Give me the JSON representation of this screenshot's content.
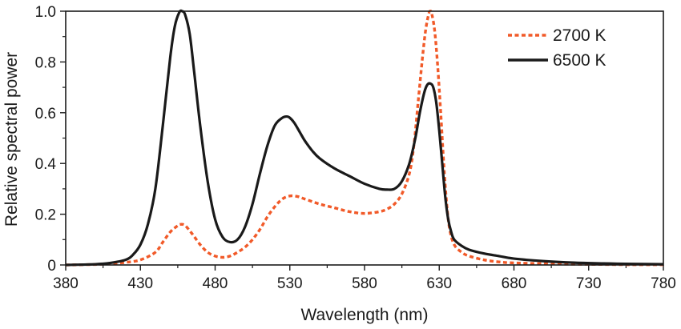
{
  "chart_data": {
    "type": "line",
    "title": "",
    "xlabel": "Wavelength (nm)",
    "ylabel": "Relative spectral power",
    "xlim": [
      380,
      780
    ],
    "ylim": [
      0,
      1.0
    ],
    "x_ticks": [
      380,
      430,
      480,
      530,
      580,
      630,
      680,
      730,
      780
    ],
    "x_tick_labels": [
      "380",
      "430",
      "480",
      "530",
      "580",
      "630",
      "680",
      "730",
      "780"
    ],
    "y_ticks": [
      0,
      0.2,
      0.4,
      0.6,
      0.8,
      1.0
    ],
    "y_tick_labels": [
      "0",
      "0.2",
      "0.4",
      "0.6",
      "0.8",
      "1.0"
    ],
    "grid": false,
    "legend_position": "top-right",
    "series": [
      {
        "name": "2700 K",
        "color": "#f15a29",
        "style": "dotted",
        "x": [
          380,
          400,
          410,
          420,
          430,
          440,
          445,
          450,
          455,
          457,
          460,
          465,
          470,
          475,
          480,
          485,
          490,
          495,
          500,
          505,
          510,
          515,
          520,
          525,
          530,
          535,
          540,
          550,
          560,
          570,
          580,
          590,
          595,
          600,
          605,
          610,
          613,
          616,
          619,
          621,
          623,
          624,
          625,
          627,
          629,
          631,
          633,
          635,
          637,
          640,
          645,
          650,
          660,
          670,
          680,
          700,
          720,
          740,
          760,
          780
        ],
        "y": [
          0.0,
          0.002,
          0.005,
          0.01,
          0.02,
          0.05,
          0.09,
          0.13,
          0.155,
          0.16,
          0.155,
          0.12,
          0.08,
          0.05,
          0.035,
          0.03,
          0.035,
          0.05,
          0.07,
          0.1,
          0.14,
          0.19,
          0.23,
          0.26,
          0.272,
          0.27,
          0.26,
          0.24,
          0.225,
          0.21,
          0.203,
          0.21,
          0.22,
          0.24,
          0.28,
          0.36,
          0.47,
          0.65,
          0.83,
          0.93,
          0.99,
          1.0,
          0.99,
          0.92,
          0.78,
          0.6,
          0.4,
          0.24,
          0.14,
          0.08,
          0.05,
          0.035,
          0.02,
          0.012,
          0.008,
          0.005,
          0.003,
          0.002,
          0.001,
          0.001
        ]
      },
      {
        "name": "6500 K",
        "color": "#1a1a1a",
        "style": "solid",
        "x": [
          380,
          400,
          410,
          420,
          425,
          430,
          435,
          440,
          445,
          450,
          453,
          456,
          458,
          460,
          463,
          466,
          470,
          475,
          480,
          485,
          490,
          495,
          500,
          505,
          510,
          515,
          520,
          525,
          528,
          530,
          533,
          537,
          540,
          545,
          550,
          560,
          570,
          580,
          590,
          595,
          600,
          605,
          610,
          614,
          617,
          620,
          622,
          624,
          626,
          628,
          630,
          632,
          634,
          636,
          638,
          640,
          645,
          650,
          660,
          670,
          680,
          700,
          720,
          740,
          760,
          780
        ],
        "y": [
          0.0,
          0.003,
          0.008,
          0.02,
          0.04,
          0.08,
          0.16,
          0.3,
          0.55,
          0.82,
          0.94,
          0.995,
          1.0,
          0.985,
          0.91,
          0.76,
          0.55,
          0.33,
          0.18,
          0.11,
          0.09,
          0.1,
          0.15,
          0.24,
          0.36,
          0.47,
          0.55,
          0.58,
          0.585,
          0.58,
          0.56,
          0.52,
          0.49,
          0.45,
          0.42,
          0.38,
          0.35,
          0.32,
          0.3,
          0.297,
          0.3,
          0.33,
          0.4,
          0.5,
          0.6,
          0.68,
          0.71,
          0.715,
          0.7,
          0.64,
          0.53,
          0.4,
          0.27,
          0.18,
          0.13,
          0.1,
          0.075,
          0.06,
          0.045,
          0.035,
          0.025,
          0.015,
          0.009,
          0.006,
          0.004,
          0.003
        ]
      }
    ]
  }
}
